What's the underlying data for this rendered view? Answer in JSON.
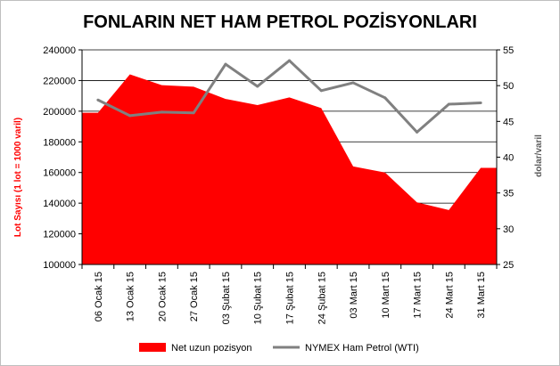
{
  "chart_data": {
    "type": "area+line",
    "title": "FONLARIN NET HAM PETROL POZİSYONLARI",
    "ylabel_left": "Lot Sayısı  (1 lot = 1000 varil)",
    "ylabel_right": "dolar/varil",
    "categories": [
      "06 Ocak 15",
      "13 Ocak 15",
      "20 Ocak 15",
      "27 Ocak 15",
      "03 Şubat 15",
      "10 Şubat 15",
      "17 Şubat 15",
      "24 Şubat 15",
      "03 Mart 15",
      "10 Mart 15",
      "17 Mart 15",
      "24 Mart 15",
      "31 Mart 15"
    ],
    "ylim_left": [
      100000,
      240000
    ],
    "yticks_left": [
      "100000",
      "120000",
      "140000",
      "160000",
      "180000",
      "200000",
      "220000",
      "240000"
    ],
    "ylim_right": [
      25,
      55
    ],
    "yticks_right": [
      "25",
      "30",
      "35",
      "40",
      "45",
      "50",
      "55"
    ],
    "grid": true,
    "legend_position": "bottom",
    "series": [
      {
        "name": "Net uzun pozisyon",
        "kind": "area",
        "axis": "left",
        "color": "#ff0000",
        "values": [
          199000,
          224000,
          217000,
          216000,
          208000,
          204000,
          209000,
          202000,
          164000,
          160000,
          140500,
          135500,
          163000
        ]
      },
      {
        "name": "NYMEX Ham Petrol (WTI)",
        "kind": "line",
        "axis": "right",
        "color": "#808080",
        "values": [
          48.0,
          45.8,
          46.3,
          46.2,
          53.0,
          49.9,
          53.5,
          49.3,
          50.4,
          48.3,
          43.5,
          47.4,
          47.6
        ]
      }
    ]
  }
}
